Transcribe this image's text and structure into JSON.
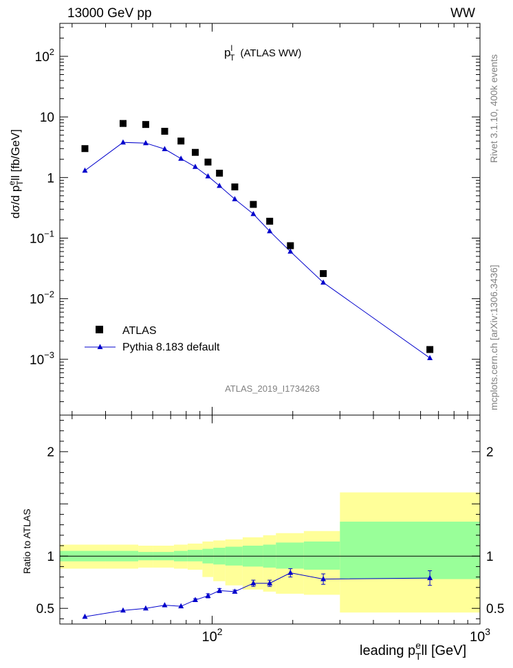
{
  "header": {
    "left": "13000 GeV pp",
    "right": "WW"
  },
  "side_labels": {
    "rivet": "Rivet 3.1.10,  400k events",
    "source": "mcplots.cern.ch [arXiv:1306.3436]"
  },
  "chart_data": [
    {
      "type": "scatter",
      "panel": "main",
      "title": "p_T^l (ATLAS WW)",
      "title_parts": {
        "base": "p",
        "sup": "l",
        "sub": "T",
        "rest": "(ATLAS WW)"
      },
      "ylabel_parts": {
        "pre": "dσ/d p",
        "sub": "T",
        "sup": "e",
        "post": "ll [fb/GeV]"
      },
      "analysis_id": "ATLAS_2019_I1734263",
      "xscale": "log",
      "yscale": "log",
      "xlim": [
        27,
        1000
      ],
      "ylim": [
        0.00012,
        350
      ],
      "y_ticks": [
        {
          "v": 0.001,
          "base": "10",
          "exp": "−3"
        },
        {
          "v": 0.01,
          "base": "10",
          "exp": "−2"
        },
        {
          "v": 0.1,
          "base": "10",
          "exp": "−1"
        },
        {
          "v": 1,
          "base": "1",
          "exp": ""
        },
        {
          "v": 10,
          "base": "10",
          "exp": ""
        },
        {
          "v": 100,
          "base": "10",
          "exp": "2"
        }
      ],
      "legend_position": "bottom-left",
      "series": [
        {
          "name": "ATLAS",
          "marker": "square",
          "color": "#000000",
          "x": [
            33.5,
            46.5,
            56.5,
            66.5,
            76.5,
            86.5,
            96.5,
            106.5,
            121.5,
            142.5,
            164,
            196,
            260,
            650
          ],
          "y": [
            3.0,
            7.8,
            7.5,
            5.8,
            4.0,
            2.6,
            1.8,
            1.18,
            0.7,
            0.36,
            0.19,
            0.075,
            0.026,
            0.00145
          ]
        },
        {
          "name": "Pythia 8.183 default",
          "marker": "triangle",
          "color": "#0000cc",
          "x": [
            33.5,
            46.5,
            56.5,
            66.5,
            76.5,
            86.5,
            96.5,
            106.5,
            121.5,
            142.5,
            164,
            196,
            260,
            650
          ],
          "y": [
            1.3,
            3.8,
            3.7,
            2.95,
            2.05,
            1.5,
            1.05,
            0.73,
            0.44,
            0.25,
            0.13,
            0.06,
            0.0185,
            0.00105
          ]
        }
      ]
    },
    {
      "type": "line",
      "panel": "ratio",
      "ylabel": "Ratio to ATLAS",
      "xlabel_parts": {
        "pre": "leading p",
        "sub": "T",
        "sup": "e",
        "post": "ll [GeV]"
      },
      "xscale": "log",
      "xlim": [
        27,
        1000
      ],
      "ylim": [
        0.35,
        2.35
      ],
      "y_tick_labels": [
        "0.5",
        "1",
        "2"
      ],
      "x_tick_labels": [
        {
          "v": 100,
          "base": "10",
          "exp": "2"
        },
        {
          "v": 1000,
          "base": "10",
          "exp": "3"
        }
      ],
      "reference_line": 1.0,
      "bin_edges": [
        27,
        40,
        53,
        60,
        72,
        81,
        92,
        101,
        112,
        130,
        155,
        173,
        220,
        300,
        1000
      ],
      "band_yellow_low": [
        0.88,
        0.88,
        0.89,
        0.89,
        0.88,
        0.87,
        0.8,
        0.76,
        0.72,
        0.68,
        0.66,
        0.64,
        0.63,
        0.46
      ],
      "band_yellow_high": [
        1.11,
        1.11,
        1.1,
        1.1,
        1.11,
        1.12,
        1.14,
        1.15,
        1.16,
        1.18,
        1.2,
        1.22,
        1.24,
        1.61
      ],
      "band_green_low": [
        0.95,
        0.95,
        0.96,
        0.96,
        0.95,
        0.95,
        0.93,
        0.92,
        0.91,
        0.9,
        0.89,
        0.88,
        0.87,
        0.78
      ],
      "band_green_high": [
        1.05,
        1.05,
        1.04,
        1.04,
        1.05,
        1.06,
        1.07,
        1.08,
        1.09,
        1.1,
        1.11,
        1.13,
        1.14,
        1.33
      ],
      "series": [
        {
          "name": "Pythia 8.183 default",
          "color": "#0000cc",
          "x": [
            33.5,
            46.5,
            56.5,
            66.5,
            76.5,
            86.5,
            96.5,
            106.5,
            121.5,
            142.5,
            164,
            196,
            260,
            650
          ],
          "y": [
            0.42,
            0.48,
            0.5,
            0.53,
            0.52,
            0.58,
            0.62,
            0.67,
            0.66,
            0.74,
            0.74,
            0.84,
            0.78,
            0.79
          ],
          "err": [
            0.005,
            0.008,
            0.008,
            0.01,
            0.01,
            0.012,
            0.02,
            0.02,
            0.015,
            0.03,
            0.03,
            0.04,
            0.05,
            0.07
          ]
        }
      ]
    }
  ]
}
